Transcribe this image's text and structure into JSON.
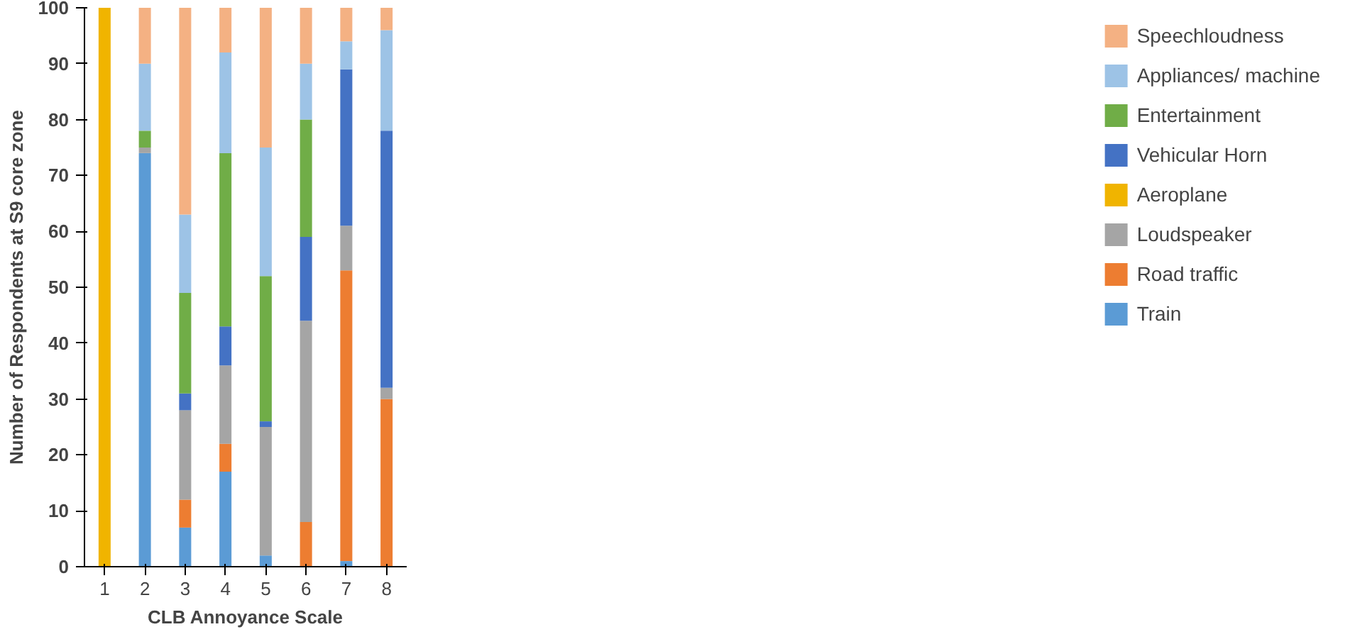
{
  "chart_data": {
    "type": "bar",
    "stacked": true,
    "xlabel": "CLB Annoyance Scale",
    "ylabel": "Number of Respondents at S9 core zone",
    "categories": [
      "1",
      "2",
      "3",
      "4",
      "5",
      "6",
      "7",
      "8"
    ],
    "series": [
      {
        "name": "Train",
        "color": "#5b9bd5",
        "values": [
          0,
          74,
          7,
          17,
          2,
          0,
          1,
          0
        ]
      },
      {
        "name": "Road traffic",
        "color": "#ed7d31",
        "values": [
          0,
          0,
          5,
          5,
          0,
          8,
          52,
          30
        ]
      },
      {
        "name": "Loudspeaker",
        "color": "#a5a5a5",
        "values": [
          0,
          1,
          16,
          14,
          23,
          36,
          8,
          2
        ]
      },
      {
        "name": "Aeroplane",
        "color": "#f0b400",
        "values": [
          100,
          0,
          0,
          0,
          0,
          0,
          0,
          0
        ]
      },
      {
        "name": "Vehicular Horn",
        "color": "#4472c4",
        "values": [
          0,
          0,
          3,
          7,
          1,
          15,
          28,
          46
        ]
      },
      {
        "name": "Entertainment",
        "color": "#70ad47",
        "values": [
          0,
          3,
          18,
          31,
          26,
          21,
          0,
          0
        ]
      },
      {
        "name": "Appliances/ machine",
        "color": "#9dc3e6",
        "values": [
          0,
          12,
          14,
          18,
          23,
          10,
          5,
          18
        ]
      },
      {
        "name": "Speechloudness",
        "color": "#f4b183",
        "values": [
          0,
          10,
          37,
          8,
          25,
          10,
          6,
          4
        ]
      }
    ],
    "ylim": [
      0,
      100
    ],
    "yticks": [
      0,
      10,
      20,
      30,
      40,
      50,
      60,
      70,
      80,
      90,
      100
    ],
    "grid": false,
    "legend": "right"
  }
}
